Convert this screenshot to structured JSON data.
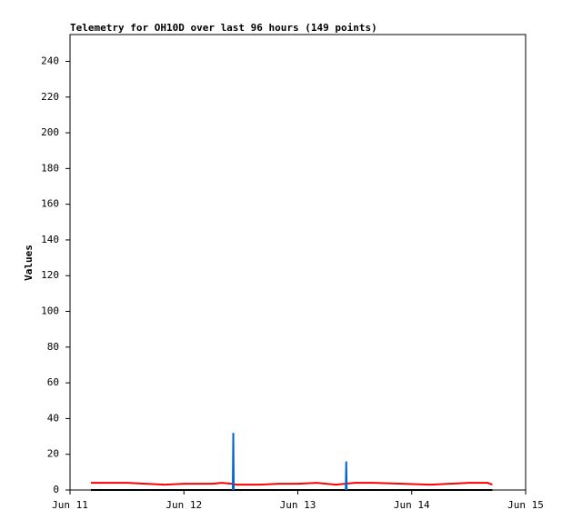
{
  "chart_data": {
    "type": "line",
    "title": "Telemetry for OH10D over last 96 hours (149 points)",
    "y_label": "Values",
    "xlim": [
      0,
      96
    ],
    "xticks": [
      {
        "value": 0,
        "label": "Jun 11"
      },
      {
        "value": 24,
        "label": "Jun 12"
      },
      {
        "value": 48,
        "label": "Jun 13"
      },
      {
        "value": 72,
        "label": "Jun 14"
      },
      {
        "value": 96,
        "label": "Jun 15"
      }
    ],
    "ylim": [
      0,
      255
    ],
    "yticks": [
      0,
      20,
      40,
      60,
      80,
      100,
      120,
      140,
      160,
      180,
      200,
      220,
      240
    ],
    "grid": false,
    "series": [
      {
        "color": "#000000",
        "x": [
          4.4,
          89
        ],
        "values": [
          0,
          0
        ]
      },
      {
        "color": "#ff0000",
        "x": [
          4.4,
          8,
          12,
          16,
          20,
          24,
          30,
          32,
          34,
          35,
          40,
          44,
          48,
          52,
          56,
          58,
          60,
          64,
          70,
          76,
          80,
          84,
          88,
          89
        ],
        "values": [
          4,
          4,
          4,
          3.5,
          3,
          3.5,
          3.5,
          4,
          3.5,
          3,
          3,
          3.5,
          3.5,
          4,
          3,
          3.5,
          4,
          4,
          3.5,
          3,
          3.5,
          4,
          4,
          3
        ]
      },
      {
        "color": "#0066cc",
        "x": [
          34.3,
          34.4,
          34.5,
          46,
          58.1,
          58.2,
          58.3
        ],
        "values": [
          0,
          32,
          0,
          null,
          0,
          16,
          0
        ]
      }
    ]
  }
}
